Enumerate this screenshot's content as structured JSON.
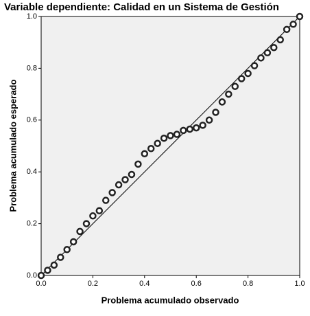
{
  "chart_data": {
    "type": "scatter",
    "title": "Variable dependiente: Calidad en un Sistema de Gestión",
    "xlabel": "Problema acumulado observado",
    "ylabel": "Problema acumulado esperado",
    "x": [
      0,
      0.025,
      0.05,
      0.075,
      0.1,
      0.125,
      0.15,
      0.175,
      0.2,
      0.225,
      0.25,
      0.275,
      0.3,
      0.325,
      0.35,
      0.375,
      0.4,
      0.425,
      0.45,
      0.475,
      0.5,
      0.525,
      0.55,
      0.575,
      0.6,
      0.625,
      0.65,
      0.675,
      0.7,
      0.725,
      0.75,
      0.775,
      0.8,
      0.825,
      0.85,
      0.875,
      0.9,
      0.925,
      0.95,
      0.975,
      1
    ],
    "series": [
      {
        "color": "#222222",
        "values": [
          0,
          0.02,
          0.04,
          0.07,
          0.1,
          0.13,
          0.17,
          0.2,
          0.23,
          0.25,
          0.29,
          0.32,
          0.35,
          0.37,
          0.39,
          0.43,
          0.47,
          0.49,
          0.51,
          0.53,
          0.54,
          0.545,
          0.56,
          0.565,
          0.57,
          0.58,
          0.6,
          0.63,
          0.67,
          0.7,
          0.73,
          0.76,
          0.78,
          0.81,
          0.84,
          0.86,
          0.88,
          0.91,
          0.95,
          0.97,
          1
        ]
      }
    ],
    "xlim": [
      0,
      1
    ],
    "ylim": [
      0,
      1
    ],
    "xticks": [
      {
        "value": 0,
        "label": "0.0"
      },
      0.2,
      0.4,
      0.6,
      0.8,
      {
        "value": 1,
        "label": "1.0"
      }
    ],
    "yticks": [
      {
        "value": 0,
        "label": "0.0"
      },
      0.2,
      0.4,
      0.6,
      0.8,
      {
        "value": 1,
        "label": "1.0"
      }
    ],
    "reference_line": true
  }
}
